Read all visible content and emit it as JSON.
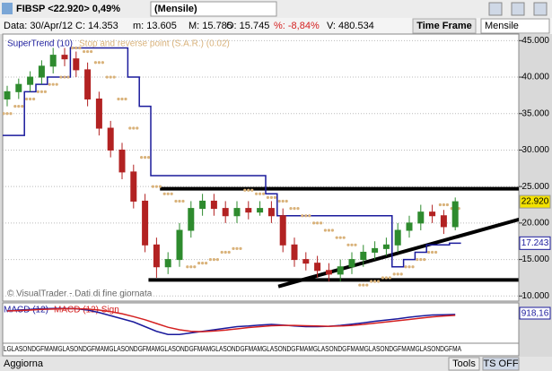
{
  "toolbar": {
    "symbol": "FIBSP <22.920> 0,49%",
    "period": "(Mensile)",
    "date": "Data: 30/Apr/12",
    "close": "C: 14.353",
    "min": "m: 13.605",
    "max": "M: 15.785",
    "open": "O: 15.745",
    "change": "%: -8,84%",
    "volume": "V: 480.534",
    "time_frame": "Time Frame",
    "time_frame_value": "Mensile"
  },
  "footer": {
    "refresh": "Aggiorna",
    "tools": "Tools",
    "ts": "TS OFF"
  },
  "chart_data": [
    {
      "type": "candlestick",
      "legend": [
        {
          "name": "SuperTrend (10)",
          "color": "#1a1a9c"
        },
        {
          "name": "Stop and reverse point (S.A.R.) (0.02)",
          "color": "#d9b27a"
        }
      ],
      "credit": "© VisualTrader - Dati di fine giornata",
      "open": [
        37,
        38,
        39,
        40,
        41.5,
        43,
        42.5,
        41,
        37,
        33,
        30,
        27,
        23,
        17,
        14,
        15,
        19,
        22,
        23,
        22,
        21,
        22,
        21.5,
        22,
        21,
        17,
        15,
        14.5,
        13.5,
        13,
        14,
        15,
        16,
        16.5,
        17,
        19,
        20,
        21.5,
        21,
        19.5
      ],
      "high": [
        38.8,
        39.8,
        40.8,
        42.3,
        44,
        44,
        43.5,
        42,
        38,
        34,
        31,
        28,
        24,
        18,
        16,
        20,
        23,
        24,
        24,
        23,
        23,
        23,
        23,
        23,
        22,
        18,
        16,
        15.5,
        14.5,
        15,
        16,
        17,
        17.5,
        18,
        20,
        21,
        22.5,
        22.5,
        21.8,
        23.5
      ],
      "low": [
        36,
        37,
        38,
        39,
        40.5,
        41.5,
        40,
        36,
        32,
        29,
        26,
        22,
        16,
        12.5,
        13,
        14,
        18,
        21,
        21,
        20,
        20,
        20.5,
        21,
        20,
        16,
        14,
        13.5,
        12.5,
        12,
        12,
        13,
        14,
        15,
        15.5,
        16,
        18,
        19,
        20,
        18.5,
        19
      ],
      "close": [
        38,
        39,
        40,
        41.5,
        43,
        42.5,
        41,
        37,
        33,
        30,
        27,
        23,
        17,
        14,
        15,
        19,
        22,
        23,
        22,
        21,
        22,
        21.5,
        22,
        21,
        17,
        15,
        14.5,
        13.5,
        13,
        14,
        15,
        16,
        16.5,
        17,
        19,
        20,
        21.5,
        21,
        19.5,
        22.92
      ],
      "supertrend": [
        32,
        32,
        38,
        39,
        40,
        40,
        44,
        44,
        44,
        44,
        44,
        40,
        36,
        26.5,
        26.5,
        26.5,
        26.5,
        26.5,
        26.5,
        26.5,
        26.5,
        26.5,
        26.5,
        24,
        21,
        21,
        21,
        21,
        21,
        21,
        21,
        21,
        21,
        21,
        14,
        15,
        16,
        17,
        17,
        17.243
      ],
      "sar": [
        35,
        36,
        37,
        38,
        39,
        40,
        44,
        43.5,
        42,
        40,
        37,
        33,
        29,
        25,
        24,
        23,
        14,
        14.5,
        15,
        16,
        16.5,
        24.5,
        24,
        23.5,
        23,
        22,
        21,
        20,
        19,
        18,
        17,
        11.5,
        12,
        12.5,
        13,
        14,
        15,
        16,
        22.5,
        22
      ],
      "up_color": "#2e8b2e",
      "down_color": "#b22222",
      "trendlines": [
        {
          "x": [
            13.3,
            44.8
          ],
          "y": [
            24.7,
            24.7
          ]
        },
        {
          "x": [
            12.3,
            44.5
          ],
          "y": [
            12.2,
            12.2
          ]
        },
        {
          "x": [
            23.6,
            44.8
          ],
          "y": [
            11.3,
            20.6
          ]
        }
      ],
      "last_price": {
        "value": 22.92,
        "label": "22.920"
      },
      "supertrend_last": {
        "value": 17.243,
        "label": "17.243"
      },
      "ylim": [
        9.3,
        45.9
      ],
      "yticks": [
        {
          "value": 10,
          "label": "10.000"
        },
        {
          "value": 15,
          "label": "15.000"
        },
        {
          "value": 20,
          "label": "20.000"
        },
        {
          "value": 25,
          "label": "25.000"
        },
        {
          "value": 30,
          "label": "30.000"
        },
        {
          "value": 35,
          "label": "35.000"
        },
        {
          "value": 40,
          "label": "40.000"
        },
        {
          "value": 45,
          "label": "45.000"
        }
      ],
      "grid": true
    },
    {
      "type": "line",
      "series": [
        {
          "name": "MACD (12)",
          "color": "#1a1a9c",
          "values": [
            0,
            0.3,
            0.5,
            0.7,
            0.8,
            0.8,
            0.7,
            0.3,
            -0.5,
            -1.5,
            -2.5,
            -3.5,
            -5,
            -6.5,
            -7.5,
            -7.5,
            -7,
            -6.5,
            -6,
            -5.5,
            -5,
            -4.8,
            -4.5,
            -4.3,
            -4.5,
            -4.8,
            -5,
            -5,
            -4.9,
            -4.6,
            -4.2,
            -3.8,
            -3.3,
            -2.9,
            -2.5,
            -2,
            -1.6,
            -1.3,
            -1.2,
            -1.1
          ]
        },
        {
          "name": "MACD (12) Sign",
          "color": "#d42020",
          "values": [
            0,
            0.1,
            0.3,
            0.5,
            0.6,
            0.7,
            0.7,
            0.6,
            0.3,
            -0.2,
            -0.9,
            -1.8,
            -2.8,
            -4,
            -5.2,
            -6,
            -6.5,
            -6.6,
            -6.4,
            -6.1,
            -5.7,
            -5.3,
            -5,
            -4.7,
            -4.6,
            -4.6,
            -4.7,
            -4.8,
            -4.9,
            -4.8,
            -4.6,
            -4.3,
            -3.9,
            -3.5,
            -3.1,
            -2.7,
            -2.3,
            -1.9,
            -1.6,
            -1.4
          ]
        }
      ],
      "readout": "918,16",
      "ylim": [
        -10,
        2
      ],
      "x_axis_strip": "LGLASONDGFMAMGLASONDGFMAMGLASONDGFMAMGLASONDGFMAMGLASONDGFMAMGLASONDGFMAMGLASONDGFMAMGLASONDGFMAMGLASONDGFMA"
    }
  ]
}
